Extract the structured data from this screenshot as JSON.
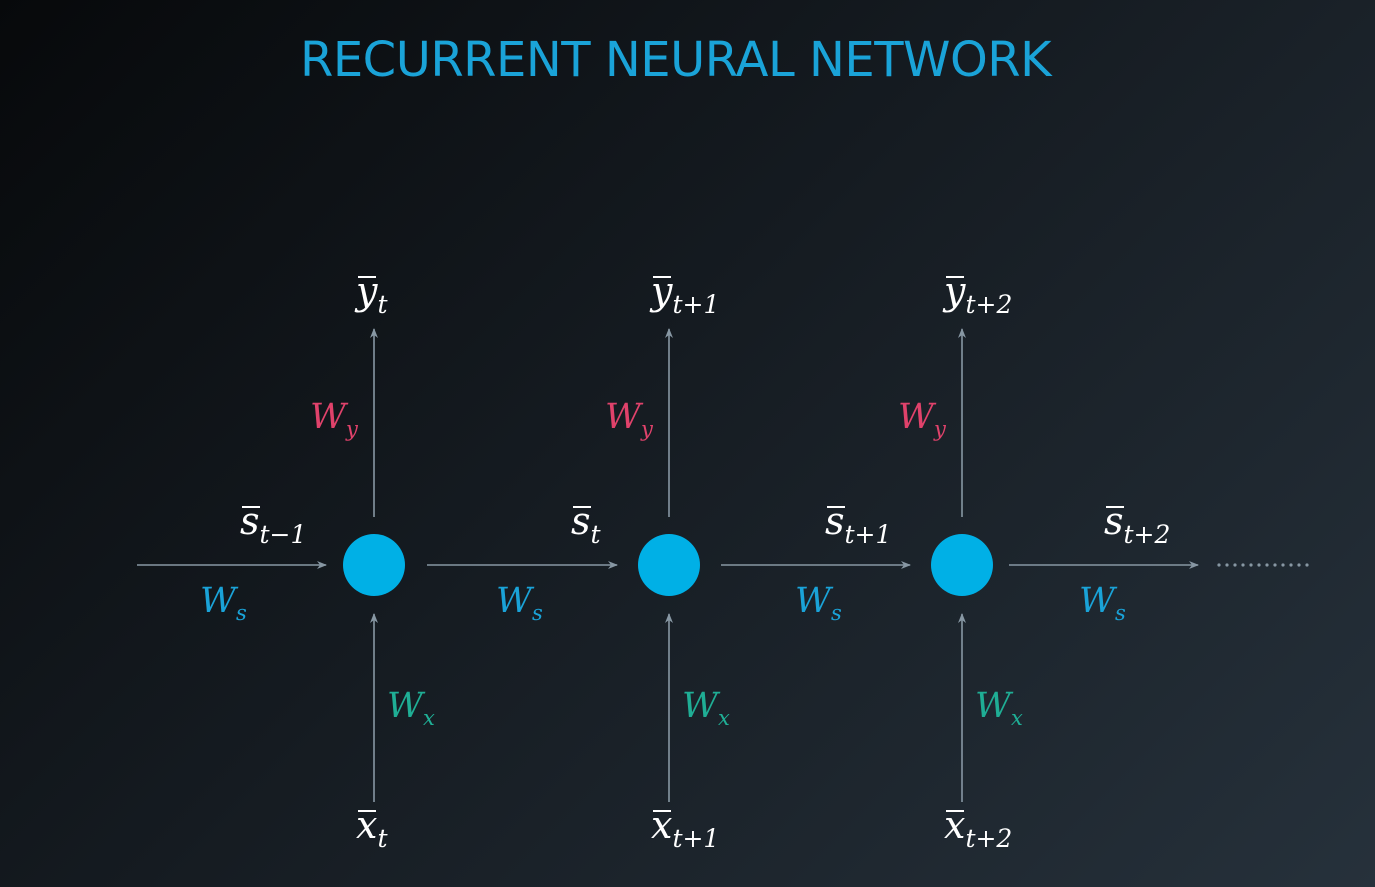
{
  "title": "RECURRENT NEURAL NETWORK",
  "colors": {
    "title": "#1aa3d8",
    "node": "#00b0e6",
    "arrow": "#8797a3",
    "ws": "#1aa3d8",
    "wy": "#e0426b",
    "wx": "#1fae95",
    "label": "#ffffff"
  },
  "nodes": [
    {
      "output": {
        "base": "y",
        "sub": "t"
      },
      "input": {
        "base": "x",
        "sub": "t"
      },
      "wy": {
        "base": "W",
        "sub": "y"
      },
      "wx": {
        "base": "W",
        "sub": "x"
      }
    },
    {
      "output": {
        "base": "y",
        "sub": "t+1"
      },
      "input": {
        "base": "x",
        "sub": "t+1"
      },
      "wy": {
        "base": "W",
        "sub": "y"
      },
      "wx": {
        "base": "W",
        "sub": "x"
      }
    },
    {
      "output": {
        "base": "y",
        "sub": "t+2"
      },
      "input": {
        "base": "x",
        "sub": "t+2"
      },
      "wy": {
        "base": "W",
        "sub": "y"
      },
      "wx": {
        "base": "W",
        "sub": "x"
      }
    }
  ],
  "states": [
    {
      "state": {
        "base": "s",
        "sub": "t−1"
      },
      "weight": {
        "base": "W",
        "sub": "s"
      }
    },
    {
      "state": {
        "base": "s",
        "sub": "t"
      },
      "weight": {
        "base": "W",
        "sub": "s"
      }
    },
    {
      "state": {
        "base": "s",
        "sub": "t+1"
      },
      "weight": {
        "base": "W",
        "sub": "s"
      }
    },
    {
      "state": {
        "base": "s",
        "sub": "t+2"
      },
      "weight": {
        "base": "W",
        "sub": "s"
      }
    }
  ],
  "continuation": "dotted"
}
